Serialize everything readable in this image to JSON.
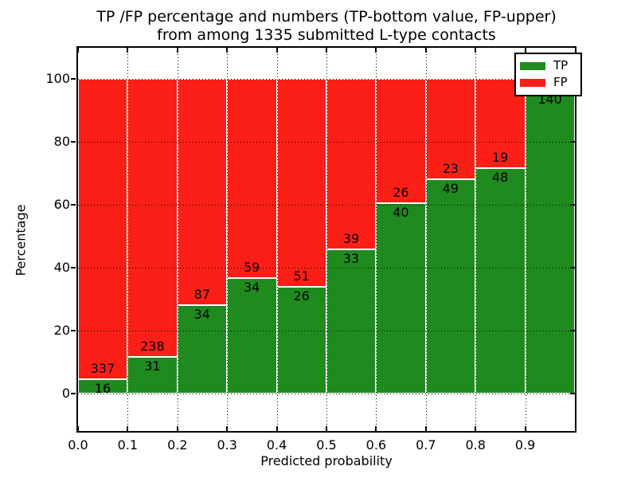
{
  "window": {
    "background": "#ffffff"
  },
  "chart_data": {
    "type": "bar",
    "stacked": true,
    "title_lines": [
      "TP /FP percentage and numbers (TP-bottom value, FP-upper)",
      "from among 1335 submitted L-type contacts"
    ],
    "xlabel": "Predicted probability",
    "ylabel": "Percentage",
    "x_ticks": [
      "0.0",
      "0.1",
      "0.2",
      "0.3",
      "0.4",
      "0.5",
      "0.6",
      "0.7",
      "0.8",
      "0.9"
    ],
    "y_ticks": [
      0,
      20,
      40,
      60,
      80,
      100
    ],
    "xlim": [
      0.0,
      1.0
    ],
    "ylim": [
      -12,
      110
    ],
    "grid": "dotted",
    "grid_on": true,
    "legend": {
      "position": "upper right",
      "entries": [
        {
          "label": "TP",
          "color": "#1f8b1f"
        },
        {
          "label": "FP",
          "color": "#fb1f17"
        }
      ]
    },
    "bins": [
      {
        "range": [
          0.0,
          0.1
        ],
        "tp": 16,
        "fp": 337,
        "tp_pct": 4.5
      },
      {
        "range": [
          0.1,
          0.2
        ],
        "tp": 31,
        "fp": 238,
        "tp_pct": 11.5
      },
      {
        "range": [
          0.2,
          0.3
        ],
        "tp": 34,
        "fp": 87,
        "tp_pct": 28.1
      },
      {
        "range": [
          0.3,
          0.4
        ],
        "tp": 34,
        "fp": 59,
        "tp_pct": 36.6
      },
      {
        "range": [
          0.4,
          0.5
        ],
        "tp": 26,
        "fp": 51,
        "tp_pct": 33.8
      },
      {
        "range": [
          0.5,
          0.6
        ],
        "tp": 33,
        "fp": 39,
        "tp_pct": 45.8
      },
      {
        "range": [
          0.6,
          0.7
        ],
        "tp": 40,
        "fp": 26,
        "tp_pct": 60.6
      },
      {
        "range": [
          0.7,
          0.8
        ],
        "tp": 49,
        "fp": 23,
        "tp_pct": 68.1
      },
      {
        "range": [
          0.8,
          0.9
        ],
        "tp": 48,
        "fp": 19,
        "tp_pct": 71.6
      },
      {
        "range": [
          0.9,
          1.0
        ],
        "tp": 140,
        "fp": null,
        "tp_pct": 96.5
      }
    ],
    "note_fp_total_to_100": "each stack sums to 100%"
  },
  "colors": {
    "tp": "#1f8b1f",
    "fp": "#fb1f17",
    "bar_edge": "#ffffff",
    "text": "#000000",
    "frame": "#000000"
  }
}
